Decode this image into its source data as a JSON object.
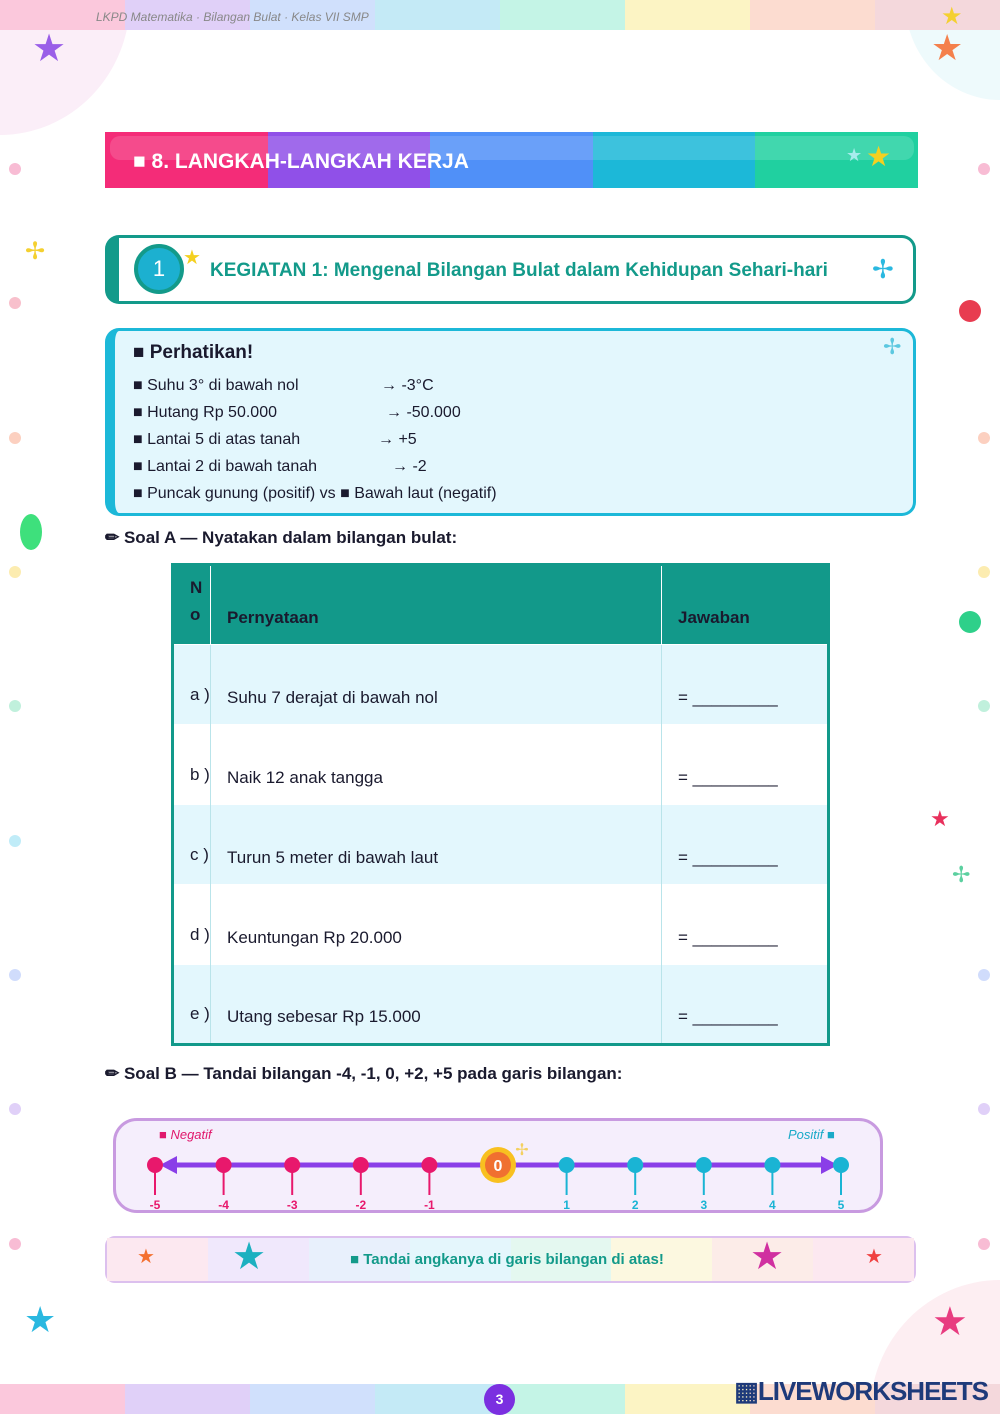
{
  "header": {
    "text": "LKPD Matematika  ·  Bilangan Bulat  ·  Kelas VII SMP"
  },
  "section": {
    "title": "■  8. LANGKAH-LANGKAH KERJA"
  },
  "activity": {
    "number": "1",
    "title": "KEGIATAN 1:  Mengenal Bilangan Bulat dalam Kehidupan Sehari-hari"
  },
  "notice": {
    "title": "■ Perhatikan!",
    "items": [
      {
        "text": "■  Suhu 3° di bawah nol",
        "value": "→  -3°C"
      },
      {
        "text": "■  Hutang Rp 50.000",
        "value": "→  -50.000"
      },
      {
        "text": "■  Lantai 5 di atas tanah",
        "value": "→  +5"
      },
      {
        "text": "■  Lantai 2 di bawah tanah",
        "value": "→  -2"
      },
      {
        "text": "■  Puncak gunung (positif)  vs  ■ Bawah laut (negatif)",
        "value": ""
      }
    ]
  },
  "soal_a": {
    "label": "✏ Soal A — Nyatakan dalam bilangan bulat:",
    "headers": [
      "N o",
      "Pernyataan",
      "Jawaban"
    ],
    "rows": [
      {
        "no": "a )",
        "statement": "Suhu 7 derajat di bawah nol",
        "answer": "= _________"
      },
      {
        "no": "b )",
        "statement": "Naik 12 anak tangga",
        "answer": "= _________"
      },
      {
        "no": "c )",
        "statement": "Turun 5 meter di bawah laut",
        "answer": "= _________"
      },
      {
        "no": "d )",
        "statement": "Keuntungan Rp 20.000",
        "answer": "= _________"
      },
      {
        "no": "e )",
        "statement": "Utang sebesar Rp 15.000",
        "answer": "= _________"
      }
    ]
  },
  "soal_b": {
    "label": "✏ Soal B — Tandai bilangan -4, -1, 0, +2, +5 pada garis bilangan:",
    "negative_label": "■ Negatif",
    "positive_label": "Positif ■",
    "ticks": [
      "-5",
      "-4",
      "-3",
      "-2",
      "-1",
      "0",
      "1",
      "2",
      "3",
      "4",
      "5"
    ],
    "colors": {
      "negative": "#e8186c",
      "positive": "#1ab4d4",
      "zero": "#f07030",
      "line": "#8a3ee8"
    }
  },
  "footer": {
    "hint": "■ Tandai angkanya di garis bilangan di atas!",
    "page": "3",
    "logo": "LIVEWORKSHEETS"
  }
}
